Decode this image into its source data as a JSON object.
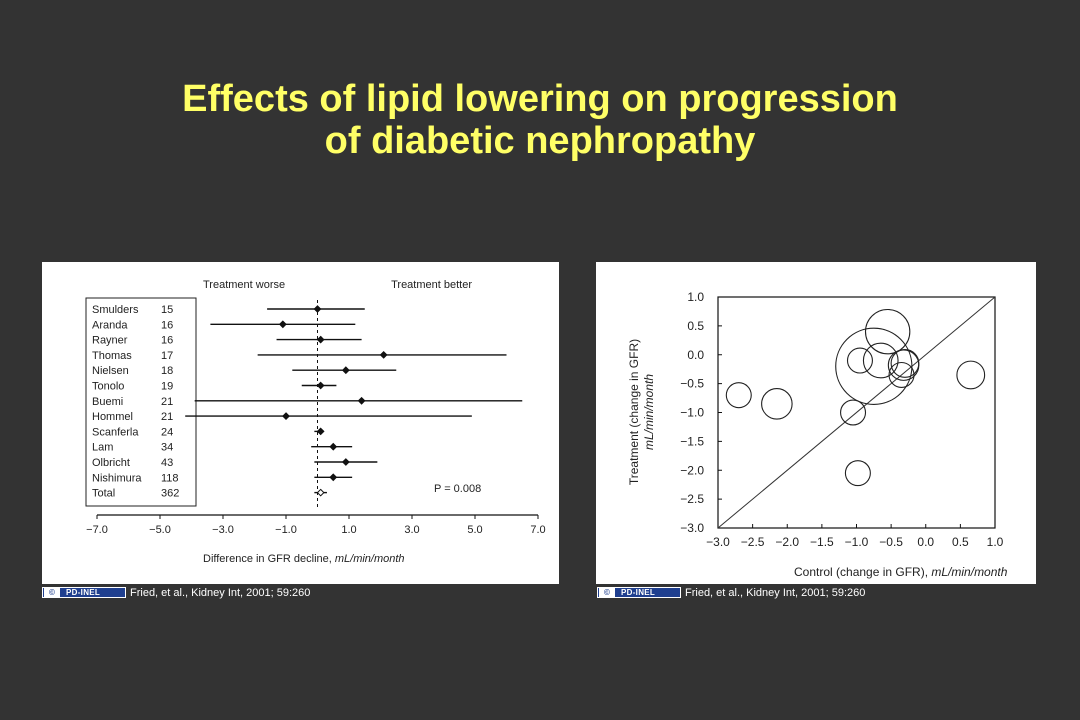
{
  "slide": {
    "title_line1": "Effects of lipid lowering on progression",
    "title_line2": "of diabetic nephropathy"
  },
  "credits": [
    {
      "badge_symbol": "©",
      "badge": "PD-INEL",
      "text": "Fried, et al., Kidney Int, 2001; 59:260"
    },
    {
      "badge_symbol": "©",
      "badge": "PD-INEL",
      "text": "Fried, et al., Kidney Int, 2001; 59:260"
    }
  ],
  "colors": {
    "background": "#333333",
    "title": "#ffff66",
    "badge": "#1f3f8f"
  },
  "chart_data": [
    {
      "type": "forest",
      "header_left": "Treatment worse",
      "header_right": "Treatment better",
      "xlabel": "Difference in GFR decline,",
      "xlabel_unit": "mL/min/month",
      "xlim": [
        -7.0,
        7.0
      ],
      "xticks": [
        -7.0,
        -5.0,
        -3.0,
        -1.0,
        1.0,
        3.0,
        5.0,
        7.0
      ],
      "xtick_labels": [
        "−7.0",
        "−5.0",
        "−3.0",
        "−1.0",
        "1.0",
        "3.0",
        "5.0",
        "7.0"
      ],
      "reference_line": 0,
      "annotation": "P = 0.008",
      "studies": [
        {
          "name": "Smulders",
          "n": "15",
          "estimate": 0.0,
          "lo": -1.6,
          "hi": 1.5
        },
        {
          "name": "Aranda",
          "n": "16",
          "estimate": -1.1,
          "lo": -3.4,
          "hi": 1.2
        },
        {
          "name": "Rayner",
          "n": "16",
          "estimate": 0.1,
          "lo": -1.3,
          "hi": 1.4
        },
        {
          "name": "Thomas",
          "n": "17",
          "estimate": 2.1,
          "lo": -1.9,
          "hi": 6.0
        },
        {
          "name": "Nielsen",
          "n": "18",
          "estimate": 0.9,
          "lo": -0.8,
          "hi": 2.5
        },
        {
          "name": "Tonolo",
          "n": "19",
          "estimate": 0.1,
          "lo": -0.5,
          "hi": 0.6
        },
        {
          "name": "Buemi",
          "n": "21",
          "estimate": 1.4,
          "lo": -3.9,
          "hi": 6.5
        },
        {
          "name": "Hommel",
          "n": "21",
          "estimate": -1.0,
          "lo": -4.2,
          "hi": 4.9
        },
        {
          "name": "Scanferla",
          "n": "24",
          "estimate": 0.1,
          "lo": -0.1,
          "hi": 0.2
        },
        {
          "name": "Lam",
          "n": "34",
          "estimate": 0.5,
          "lo": -0.2,
          "hi": 1.1
        },
        {
          "name": "Olbricht",
          "n": "43",
          "estimate": 0.9,
          "lo": -0.1,
          "hi": 1.9
        },
        {
          "name": "Nishimura",
          "n": "118",
          "estimate": 0.5,
          "lo": -0.1,
          "hi": 1.1
        }
      ],
      "total": {
        "name": "Total",
        "n": "362",
        "estimate": 0.1,
        "lo": -0.1,
        "hi": 0.3
      }
    },
    {
      "type": "scatter",
      "xlabel": "Control (change in GFR),",
      "xlabel_unit": "mL/min/month",
      "ylabel": "Treatment (change in GFR)",
      "ylabel_unit": "mL/min/month",
      "xlim": [
        -3.0,
        1.0
      ],
      "ylim": [
        -3.0,
        1.0
      ],
      "xticks": [
        -3.0,
        -2.5,
        -2.0,
        -1.5,
        -1.0,
        -0.5,
        0.0,
        0.5,
        1.0
      ],
      "xtick_labels": [
        "−3.0",
        "−2.5",
        "−2.0",
        "−1.5",
        "−1.0",
        "−0.5",
        "0.0",
        "0.5",
        "1.0"
      ],
      "yticks": [
        1.0,
        0.5,
        0.0,
        -0.5,
        -1.0,
        -1.5,
        -2.0,
        -2.5,
        -3.0
      ],
      "ytick_labels": [
        "1.0",
        "0.5",
        "0.0",
        "−0.5",
        "−1.0",
        "−1.5",
        "−2.0",
        "−2.5",
        "−3.0"
      ],
      "identity_line": true,
      "points": [
        {
          "x": -2.7,
          "y": -0.7,
          "r": 0.18
        },
        {
          "x": -2.15,
          "y": -0.85,
          "r": 0.22
        },
        {
          "x": -1.05,
          "y": -1.0,
          "r": 0.18
        },
        {
          "x": -0.98,
          "y": -2.05,
          "r": 0.18
        },
        {
          "x": -0.95,
          "y": -0.1,
          "r": 0.18
        },
        {
          "x": -0.75,
          "y": -0.2,
          "r": 0.55
        },
        {
          "x": -0.65,
          "y": -0.1,
          "r": 0.25
        },
        {
          "x": -0.55,
          "y": 0.4,
          "r": 0.32
        },
        {
          "x": -0.32,
          "y": -0.18,
          "r": 0.22
        },
        {
          "x": -0.3,
          "y": -0.15,
          "r": 0.2
        },
        {
          "x": -0.35,
          "y": -0.35,
          "r": 0.18
        },
        {
          "x": 0.65,
          "y": -0.35,
          "r": 0.2
        }
      ]
    }
  ]
}
